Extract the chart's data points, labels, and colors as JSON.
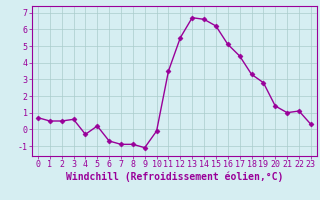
{
  "x": [
    0,
    1,
    2,
    3,
    4,
    5,
    6,
    7,
    8,
    9,
    10,
    11,
    12,
    13,
    14,
    15,
    16,
    17,
    18,
    19,
    20,
    21,
    22,
    23
  ],
  "y": [
    0.7,
    0.5,
    0.5,
    0.6,
    -0.3,
    0.2,
    -0.7,
    -0.9,
    -0.9,
    -1.1,
    -0.1,
    3.5,
    5.5,
    6.7,
    6.6,
    6.2,
    5.1,
    4.4,
    3.3,
    2.8,
    1.4,
    1.0,
    1.1,
    0.3
  ],
  "line_color": "#990099",
  "marker": "D",
  "markersize": 2.5,
  "linewidth": 1.0,
  "bg_color": "#d6eef2",
  "grid_color": "#aacccc",
  "xlabel": "Windchill (Refroidissement éolien,°C)",
  "xlim": [
    -0.5,
    23.5
  ],
  "ylim": [
    -1.6,
    7.4
  ],
  "xticks": [
    0,
    1,
    2,
    3,
    4,
    5,
    6,
    7,
    8,
    9,
    10,
    11,
    12,
    13,
    14,
    15,
    16,
    17,
    18,
    19,
    20,
    21,
    22,
    23
  ],
  "yticks": [
    -1,
    0,
    1,
    2,
    3,
    4,
    5,
    6,
    7
  ],
  "xlabel_fontsize": 7,
  "tick_fontsize": 6
}
